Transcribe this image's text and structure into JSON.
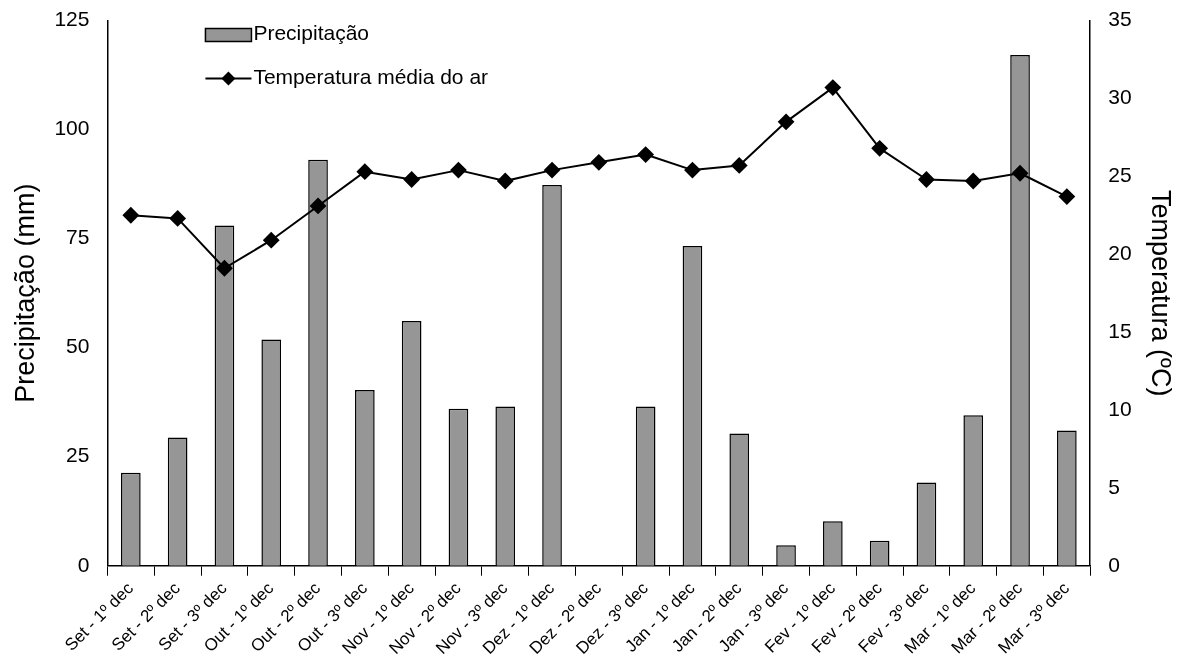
{
  "chart_data": {
    "type": "bar",
    "ylabel": "Precipitação (mm)",
    "y2label": "Temperatura (ºC)",
    "categories": [
      "Set - 1º dec",
      "Set - 2º dec",
      "Set - 3º dec",
      "Out - 1º dec",
      "Out - 2º dec",
      "Out - 3º dec",
      "Nov - 1º dec",
      "Nov - 2º dec",
      "Nov - 3º dec",
      "Dez - 1º dec",
      "Dez - 2º dec",
      "Dez - 3º dec",
      "Jan - 1º dec",
      "Jan - 2º dec",
      "Jan - 3º dec",
      "Fev - 1º dec",
      "Fev - 2º dec",
      "Fev - 3º dec",
      "Mar - 1º dec",
      "Mar - 2º dec",
      "Mar - 3º dec"
    ],
    "series": [
      {
        "name": "Precipitação",
        "color": "#969696",
        "values": [
          21.3,
          29.4,
          78.0,
          51.9,
          93.1,
          40.3,
          56.1,
          36.0,
          36.5,
          87.3,
          0,
          36.5,
          73.3,
          30.3,
          4.7,
          10.2,
          5.7,
          19.1,
          34.5,
          117.1,
          31.0
        ]
      },
      {
        "name": "Temperatura média do ar",
        "type": "line",
        "axis": "y2",
        "color": "#000000",
        "marker": "diamond",
        "values": [
          22.5,
          22.3,
          19.1,
          20.9,
          23.1,
          25.3,
          24.8,
          25.4,
          24.7,
          25.4,
          25.9,
          26.4,
          25.4,
          25.7,
          28.5,
          30.7,
          26.8,
          24.8,
          24.7,
          25.2,
          23.7
        ]
      }
    ],
    "ylim": [
      0,
      125
    ],
    "yticks": [
      0,
      25,
      50,
      75,
      100,
      125
    ],
    "y2lim": [
      0,
      35
    ],
    "y2ticks": [
      0,
      5,
      10,
      15,
      20,
      25,
      30,
      35
    ],
    "grid": false,
    "legend": "top left"
  }
}
